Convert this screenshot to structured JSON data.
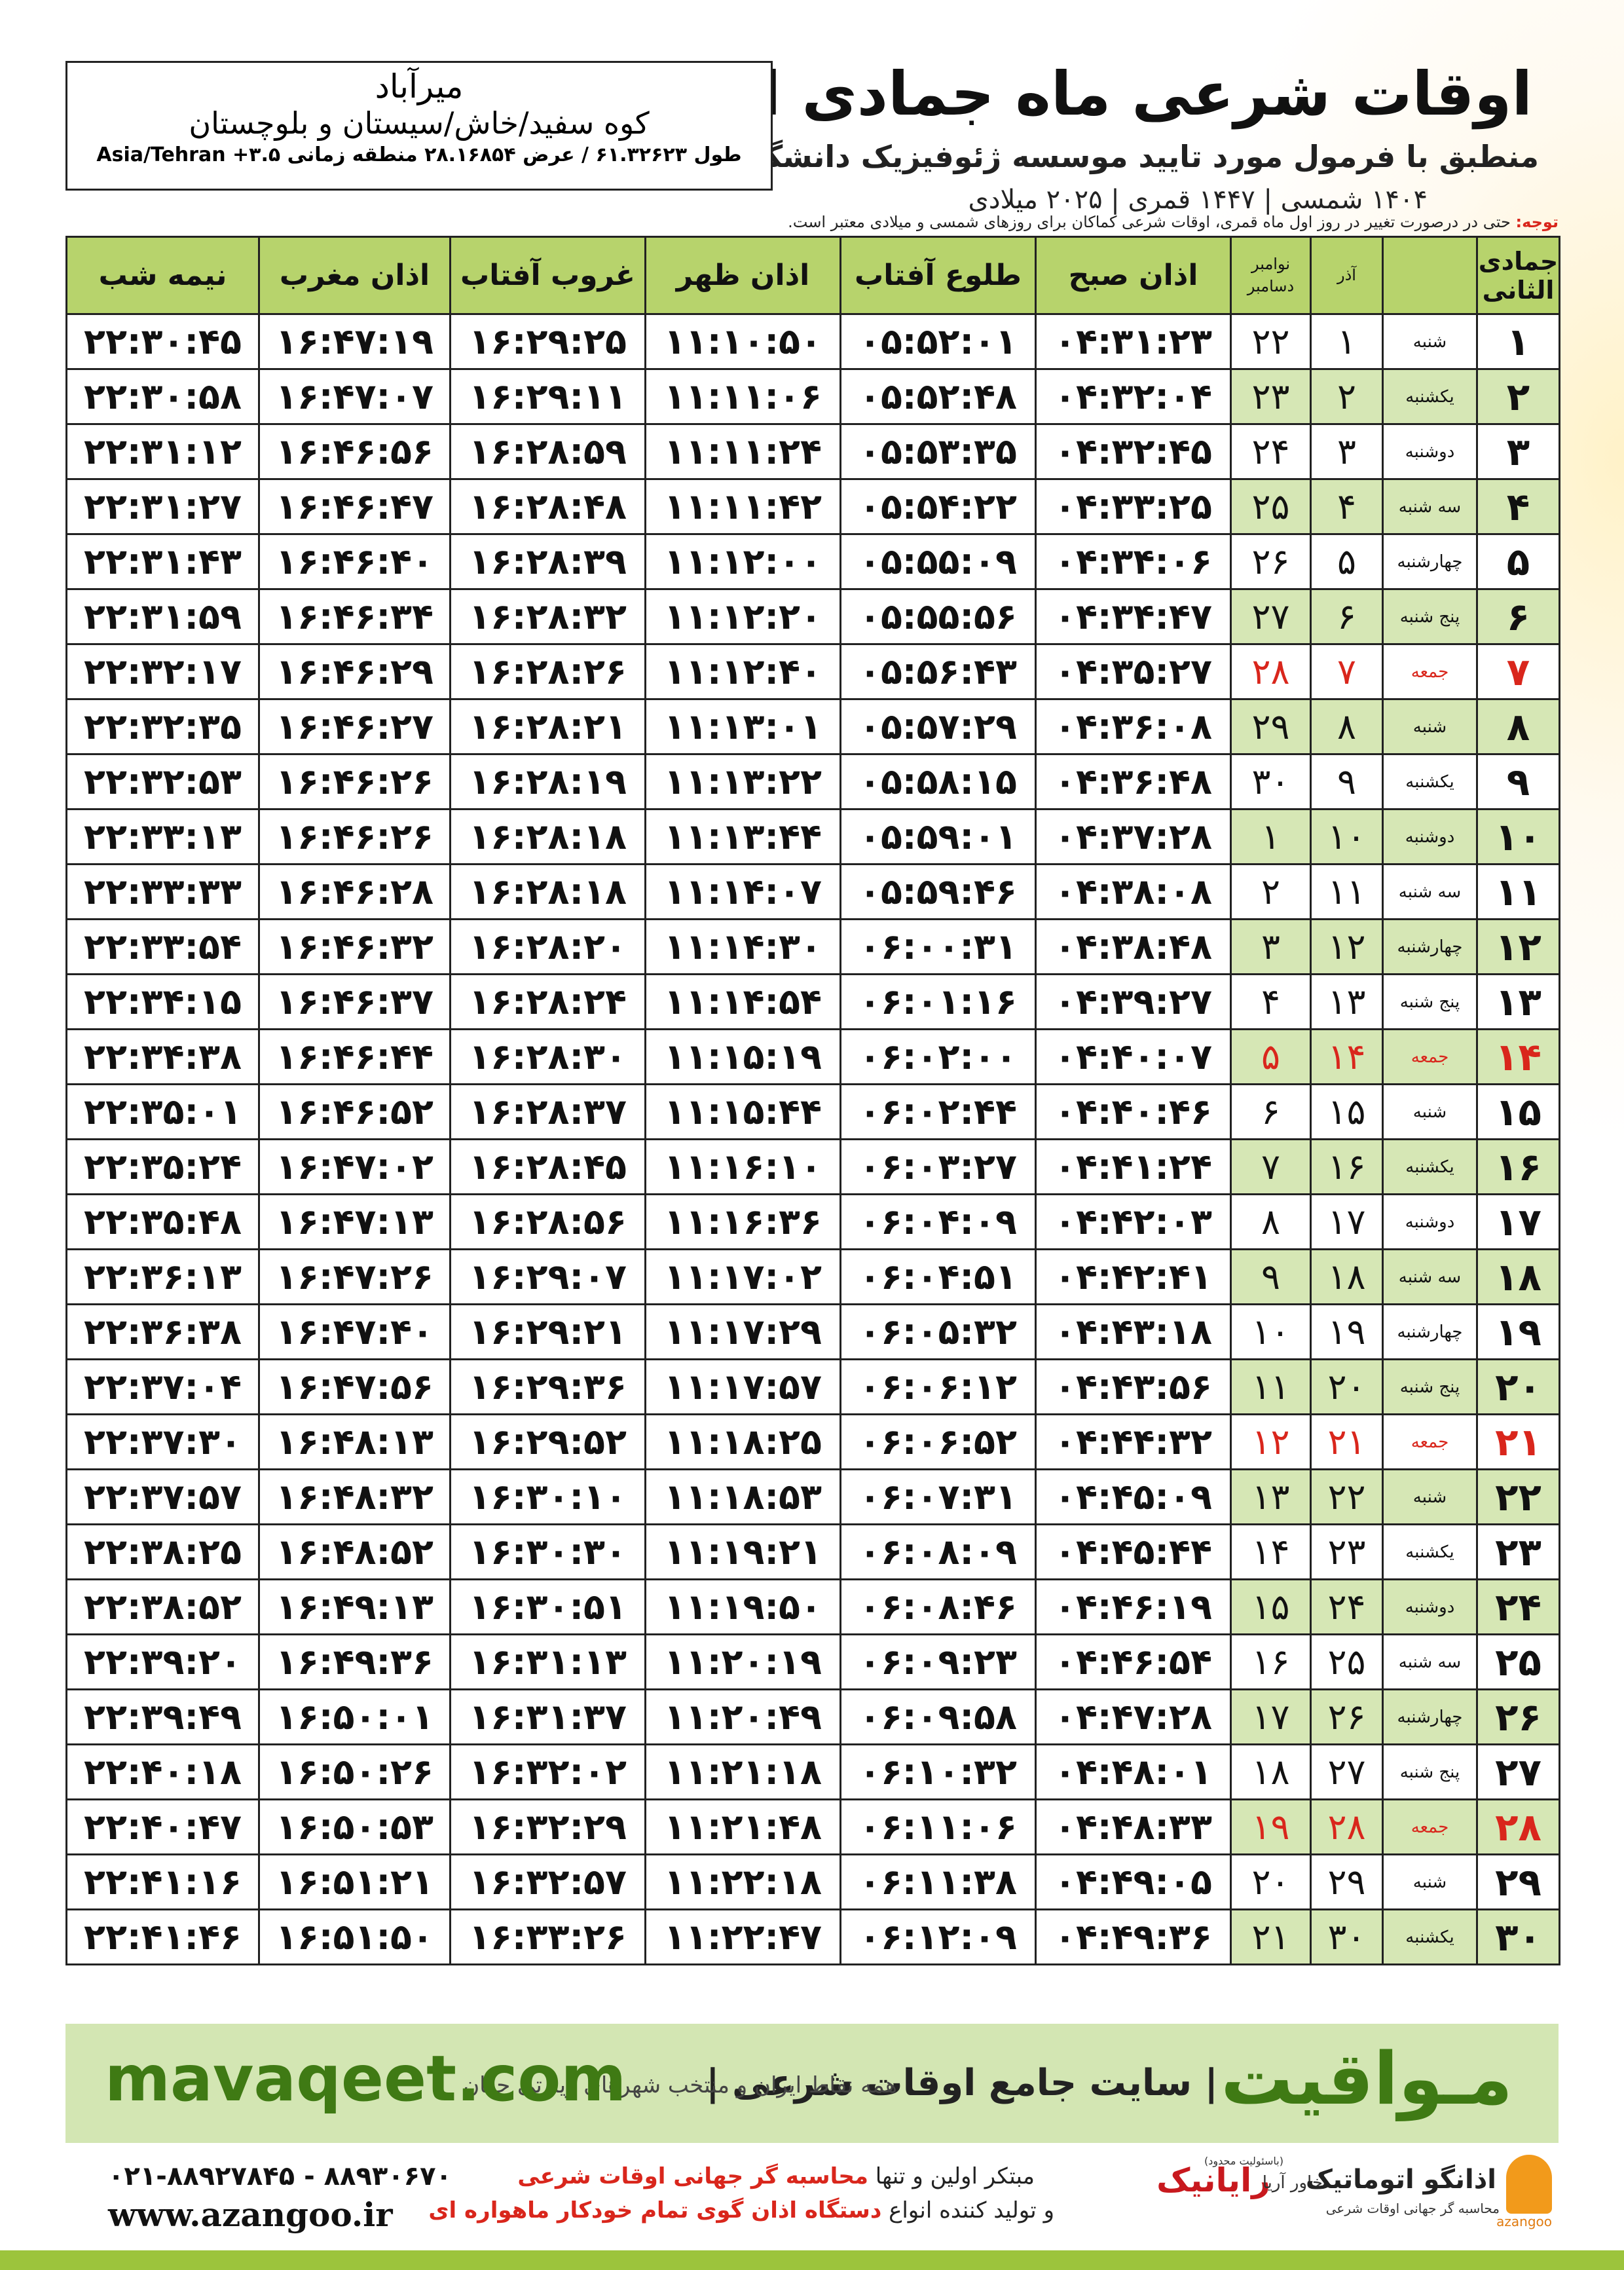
{
  "header": {
    "title": "اوقات شرعی ماه جمادی الثانی",
    "subtitle": "منطبق با فرمول مورد تایید موسسه ژئوفیزیک دانشگاه تهران",
    "years": "۱۴۰۴ شمسی | ۱۴۴۷ قمری | ۲۰۲۵ میلادی"
  },
  "location": {
    "name": "میرآباد",
    "region": "کوه سفید/خاش/سیستان و بلوچستان",
    "coords": "طول ۶۱.۳۲۶۲۳ / عرض ۲۸.۱۶۸۵۴ منطقه زمانی ۳.۵+ Asia/Tehran"
  },
  "note": {
    "label": "توجه:",
    "text": "حتی در درصورت تغییر در روز اول ماه قمری، اوقات شرعی کماکان برای روزهای شمسی و میلادی معتبر است."
  },
  "table": {
    "columns": [
      "جمادی الثانی",
      "آذر",
      "نوامبر",
      "دسامبر",
      "اذان صبح",
      "طلوع آفتاب",
      "اذان ظهر",
      "غروب آفتاب",
      "اذان مغرب",
      "نیمه شب"
    ],
    "rows": [
      {
        "cells": [
          "۱",
          "شنبه",
          "۱",
          "۲۲",
          "۰۴:۳۱:۲۳",
          "۰۵:۵۲:۰۱",
          "۱۱:۱۰:۵۰",
          "۱۶:۲۹:۲۵",
          "۱۶:۴۷:۱۹",
          "۲۲:۳۰:۴۵"
        ]
      },
      {
        "cells": [
          "۲",
          "یکشنبه",
          "۲",
          "۲۳",
          "۰۴:۳۲:۰۴",
          "۰۵:۵۲:۴۸",
          "۱۱:۱۱:۰۶",
          "۱۶:۲۹:۱۱",
          "۱۶:۴۷:۰۷",
          "۲۲:۳۰:۵۸"
        ]
      },
      {
        "cells": [
          "۳",
          "دوشنبه",
          "۳",
          "۲۴",
          "۰۴:۳۲:۴۵",
          "۰۵:۵۳:۳۵",
          "۱۱:۱۱:۲۴",
          "۱۶:۲۸:۵۹",
          "۱۶:۴۶:۵۶",
          "۲۲:۳۱:۱۲"
        ]
      },
      {
        "cells": [
          "۴",
          "سه شنبه",
          "۴",
          "۲۵",
          "۰۴:۳۳:۲۵",
          "۰۵:۵۴:۲۲",
          "۱۱:۱۱:۴۲",
          "۱۶:۲۸:۴۸",
          "۱۶:۴۶:۴۷",
          "۲۲:۳۱:۲۷"
        ]
      },
      {
        "cells": [
          "۵",
          "چهارشنبه",
          "۵",
          "۲۶",
          "۰۴:۳۴:۰۶",
          "۰۵:۵۵:۰۹",
          "۱۱:۱۲:۰۰",
          "۱۶:۲۸:۳۹",
          "۱۶:۴۶:۴۰",
          "۲۲:۳۱:۴۳"
        ]
      },
      {
        "cells": [
          "۶",
          "پنج شنبه",
          "۶",
          "۲۷",
          "۰۴:۳۴:۴۷",
          "۰۵:۵۵:۵۶",
          "۱۱:۱۲:۲۰",
          "۱۶:۲۸:۳۲",
          "۱۶:۴۶:۳۴",
          "۲۲:۳۱:۵۹"
        ]
      },
      {
        "cells": [
          "۷",
          "جمعه",
          "۷",
          "۲۸",
          "۰۴:۳۵:۲۷",
          "۰۵:۵۶:۴۳",
          "۱۱:۱۲:۴۰",
          "۱۶:۲۸:۲۶",
          "۱۶:۴۶:۲۹",
          "۲۲:۳۲:۱۷"
        ],
        "color": "#d9261c"
      },
      {
        "cells": [
          "۸",
          "شنبه",
          "۸",
          "۲۹",
          "۰۴:۳۶:۰۸",
          "۰۵:۵۷:۲۹",
          "۱۱:۱۳:۰۱",
          "۱۶:۲۸:۲۱",
          "۱۶:۴۶:۲۷",
          "۲۲:۳۲:۳۵"
        ]
      },
      {
        "cells": [
          "۹",
          "یکشنبه",
          "۹",
          "۳۰",
          "۰۴:۳۶:۴۸",
          "۰۵:۵۸:۱۵",
          "۱۱:۱۳:۲۲",
          "۱۶:۲۸:۱۹",
          "۱۶:۴۶:۲۶",
          "۲۲:۳۲:۵۳"
        ]
      },
      {
        "cells": [
          "۱۰",
          "دوشنبه",
          "۱۰",
          "۱",
          "۰۴:۳۷:۲۸",
          "۰۵:۵۹:۰۱",
          "۱۱:۱۳:۴۴",
          "۱۶:۲۸:۱۸",
          "۱۶:۴۶:۲۶",
          "۲۲:۳۳:۱۳"
        ]
      },
      {
        "cells": [
          "۱۱",
          "سه شنبه",
          "۱۱",
          "۲",
          "۰۴:۳۸:۰۸",
          "۰۵:۵۹:۴۶",
          "۱۱:۱۴:۰۷",
          "۱۶:۲۸:۱۸",
          "۱۶:۴۶:۲۸",
          "۲۲:۳۳:۳۳"
        ]
      },
      {
        "cells": [
          "۱۲",
          "چهارشنبه",
          "۱۲",
          "۳",
          "۰۴:۳۸:۴۸",
          "۰۶:۰۰:۳۱",
          "۱۱:۱۴:۳۰",
          "۱۶:۲۸:۲۰",
          "۱۶:۴۶:۳۲",
          "۲۲:۳۳:۵۴"
        ]
      },
      {
        "cells": [
          "۱۳",
          "پنج شنبه",
          "۱۳",
          "۴",
          "۰۴:۳۹:۲۷",
          "۰۶:۰۱:۱۶",
          "۱۱:۱۴:۵۴",
          "۱۶:۲۸:۲۴",
          "۱۶:۴۶:۳۷",
          "۲۲:۳۴:۱۵"
        ]
      },
      {
        "cells": [
          "۱۴",
          "جمعه",
          "۱۴",
          "۵",
          "۰۴:۴۰:۰۷",
          "۰۶:۰۲:۰۰",
          "۱۱:۱۵:۱۹",
          "۱۶:۲۸:۳۰",
          "۱۶:۴۶:۴۴",
          "۲۲:۳۴:۳۸"
        ],
        "color": "#d9261c"
      },
      {
        "cells": [
          "۱۵",
          "شنبه",
          "۱۵",
          "۶",
          "۰۴:۴۰:۴۶",
          "۰۶:۰۲:۴۴",
          "۱۱:۱۵:۴۴",
          "۱۶:۲۸:۳۷",
          "۱۶:۴۶:۵۲",
          "۲۲:۳۵:۰۱"
        ]
      },
      {
        "cells": [
          "۱۶",
          "یکشنبه",
          "۱۶",
          "۷",
          "۰۴:۴۱:۲۴",
          "۰۶:۰۳:۲۷",
          "۱۱:۱۶:۱۰",
          "۱۶:۲۸:۴۵",
          "۱۶:۴۷:۰۲",
          "۲۲:۳۵:۲۴"
        ]
      },
      {
        "cells": [
          "۱۷",
          "دوشنبه",
          "۱۷",
          "۸",
          "۰۴:۴۲:۰۳",
          "۰۶:۰۴:۰۹",
          "۱۱:۱۶:۳۶",
          "۱۶:۲۸:۵۶",
          "۱۶:۴۷:۱۳",
          "۲۲:۳۵:۴۸"
        ]
      },
      {
        "cells": [
          "۱۸",
          "سه شنبه",
          "۱۸",
          "۹",
          "۰۴:۴۲:۴۱",
          "۰۶:۰۴:۵۱",
          "۱۱:۱۷:۰۲",
          "۱۶:۲۹:۰۷",
          "۱۶:۴۷:۲۶",
          "۲۲:۳۶:۱۳"
        ]
      },
      {
        "cells": [
          "۱۹",
          "چهارشنبه",
          "۱۹",
          "۱۰",
          "۰۴:۴۳:۱۸",
          "۰۶:۰۵:۳۲",
          "۱۱:۱۷:۲۹",
          "۱۶:۲۹:۲۱",
          "۱۶:۴۷:۴۰",
          "۲۲:۳۶:۳۸"
        ]
      },
      {
        "cells": [
          "۲۰",
          "پنج شنبه",
          "۲۰",
          "۱۱",
          "۰۴:۴۳:۵۶",
          "۰۶:۰۶:۱۲",
          "۱۱:۱۷:۵۷",
          "۱۶:۲۹:۳۶",
          "۱۶:۴۷:۵۶",
          "۲۲:۳۷:۰۴"
        ]
      },
      {
        "cells": [
          "۲۱",
          "جمعه",
          "۲۱",
          "۱۲",
          "۰۴:۴۴:۳۲",
          "۰۶:۰۶:۵۲",
          "۱۱:۱۸:۲۵",
          "۱۶:۲۹:۵۲",
          "۱۶:۴۸:۱۳",
          "۲۲:۳۷:۳۰"
        ],
        "color": "#d9261c"
      },
      {
        "cells": [
          "۲۲",
          "شنبه",
          "۲۲",
          "۱۳",
          "۰۴:۴۵:۰۹",
          "۰۶:۰۷:۳۱",
          "۱۱:۱۸:۵۳",
          "۱۶:۳۰:۱۰",
          "۱۶:۴۸:۳۲",
          "۲۲:۳۷:۵۷"
        ]
      },
      {
        "cells": [
          "۲۳",
          "یکشنبه",
          "۲۳",
          "۱۴",
          "۰۴:۴۵:۴۴",
          "۰۶:۰۸:۰۹",
          "۱۱:۱۹:۲۱",
          "۱۶:۳۰:۳۰",
          "۱۶:۴۸:۵۲",
          "۲۲:۳۸:۲۵"
        ]
      },
      {
        "cells": [
          "۲۴",
          "دوشنبه",
          "۲۴",
          "۱۵",
          "۰۴:۴۶:۱۹",
          "۰۶:۰۸:۴۶",
          "۱۱:۱۹:۵۰",
          "۱۶:۳۰:۵۱",
          "۱۶:۴۹:۱۳",
          "۲۲:۳۸:۵۲"
        ]
      },
      {
        "cells": [
          "۲۵",
          "سه شنبه",
          "۲۵",
          "۱۶",
          "۰۴:۴۶:۵۴",
          "۰۶:۰۹:۲۳",
          "۱۱:۲۰:۱۹",
          "۱۶:۳۱:۱۳",
          "۱۶:۴۹:۳۶",
          "۲۲:۳۹:۲۰"
        ]
      },
      {
        "cells": [
          "۲۶",
          "چهارشنبه",
          "۲۶",
          "۱۷",
          "۰۴:۴۷:۲۸",
          "۰۶:۰۹:۵۸",
          "۱۱:۲۰:۴۹",
          "۱۶:۳۱:۳۷",
          "۱۶:۵۰:۰۱",
          "۲۲:۳۹:۴۹"
        ]
      },
      {
        "cells": [
          "۲۷",
          "پنج شنبه",
          "۲۷",
          "۱۸",
          "۰۴:۴۸:۰۱",
          "۰۶:۱۰:۳۲",
          "۱۱:۲۱:۱۸",
          "۱۶:۳۲:۰۲",
          "۱۶:۵۰:۲۶",
          "۲۲:۴۰:۱۸"
        ]
      },
      {
        "cells": [
          "۲۸",
          "جمعه",
          "۲۸",
          "۱۹",
          "۰۴:۴۸:۳۳",
          "۰۶:۱۱:۰۶",
          "۱۱:۲۱:۴۸",
          "۱۶:۳۲:۲۹",
          "۱۶:۵۰:۵۳",
          "۲۲:۴۰:۴۷"
        ],
        "color": "#d9261c"
      },
      {
        "cells": [
          "۲۹",
          "شنبه",
          "۲۹",
          "۲۰",
          "۰۴:۴۹:۰۵",
          "۰۶:۱۱:۳۸",
          "۱۱:۲۲:۱۸",
          "۱۶:۳۲:۵۷",
          "۱۶:۵۱:۲۱",
          "۲۲:۴۱:۱۶"
        ]
      },
      {
        "cells": [
          "۳۰",
          "یکشنبه",
          "۳۰",
          "۲۱",
          "۰۴:۴۹:۳۶",
          "۰۶:۱۲:۰۹",
          "۱۱:۲۲:۴۷",
          "۱۶:۳۳:۲۶",
          "۱۶:۵۱:۵۰",
          "۲۲:۴۱:۴۶"
        ]
      }
    ]
  },
  "banner": {
    "brand": "مـواقیت",
    "slogan": "| سایت جامع اوقات شرعی |",
    "scope": "همه نقاط ایران و منتخب شهرهای زیارتی جهان",
    "site": "mavaqeet.com"
  },
  "footer": {
    "phone": "۰۲۱-۸۸۹۲۷۸۴۵ - ۸۸۹۳۰۶۷۰",
    "www": "www.azangoo.ir",
    "line1_a": "مبتکر اولین و تنها",
    "line1_b": "محاسبه گر جهانی اوقات شرعی",
    "line2_a": "و تولید کننده انواع",
    "line2_b": "دستگاه اذان گوی تمام خودکار ماهواره ای",
    "logo1": "رایانیک",
    "logo1_sub": "خاور آریا",
    "logo1_note": "(باسئولیت محدود)",
    "logo2": "اذانگو اتوماتیک",
    "logo2_sub": "محاسبه گر جهانی اوقات شرعی",
    "logo2_en": "azangoo"
  }
}
